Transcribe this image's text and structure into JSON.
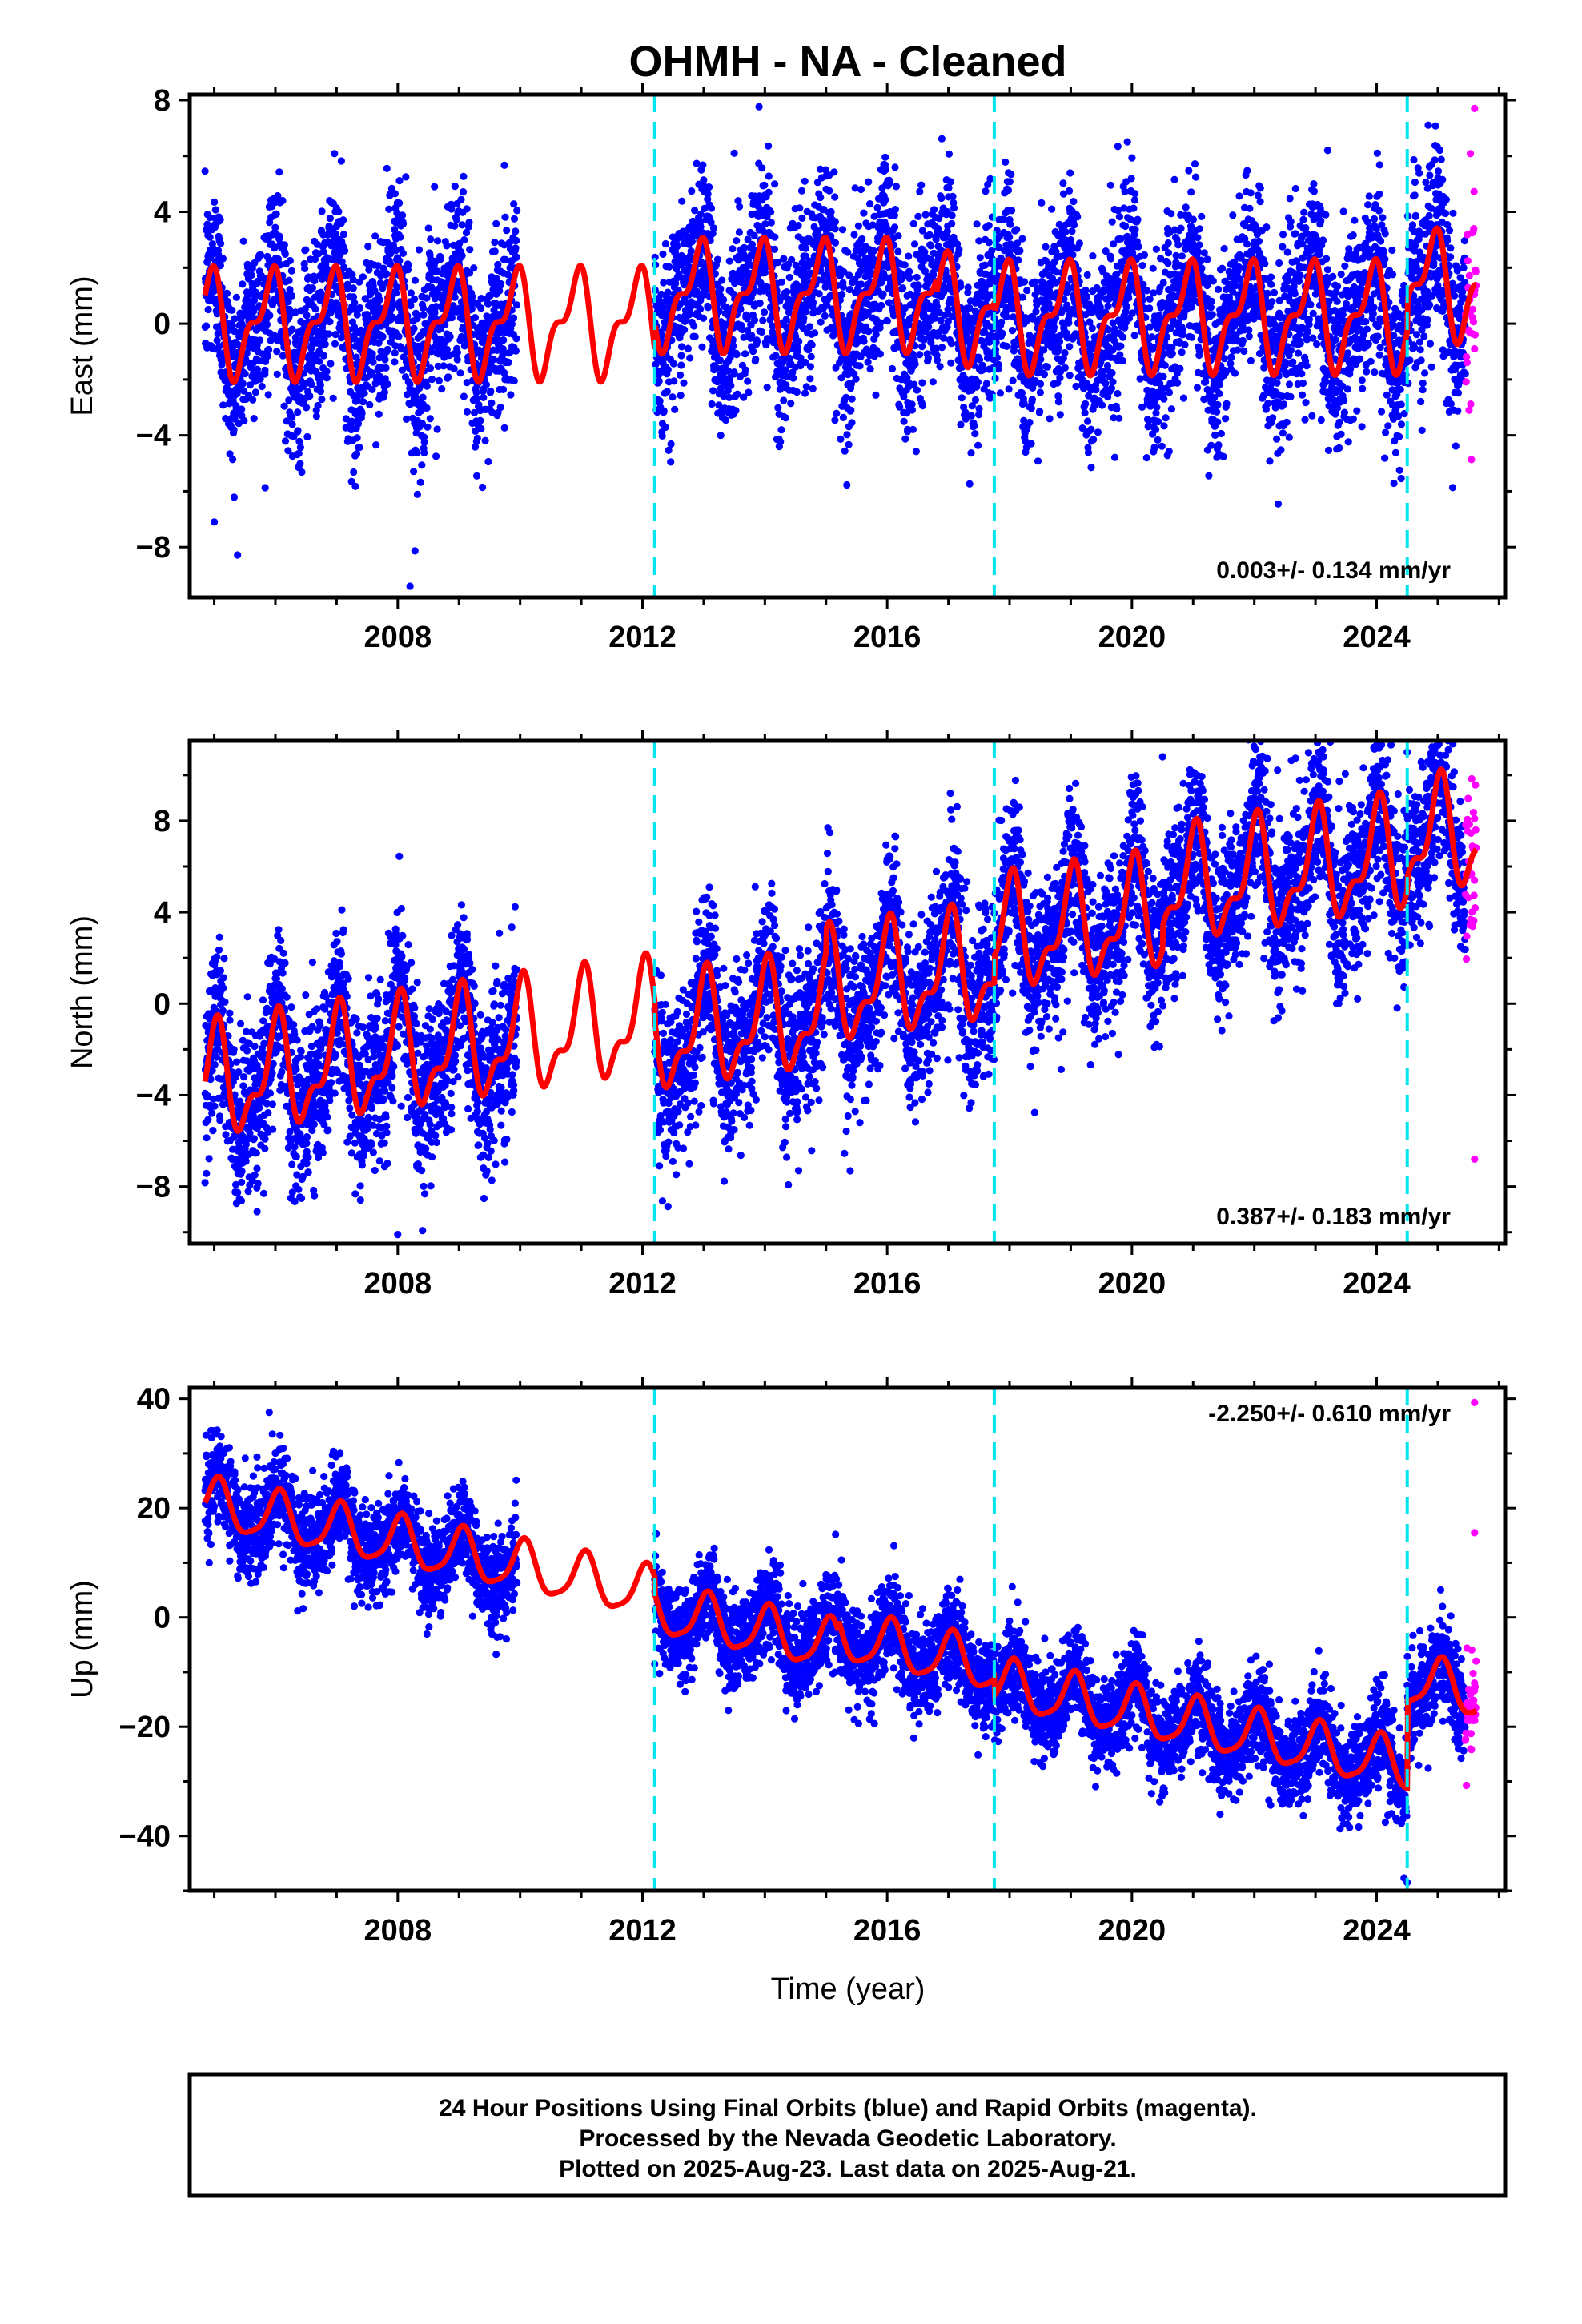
{
  "title": "OHMH  - NA - Cleaned",
  "xlabel": "Time (year)",
  "footer": {
    "line1": "24 Hour Positions Using Final Orbits (blue) and Rapid Orbits (magenta).",
    "line2": "Processed by the Nevada Geodetic Laboratory.",
    "line3": "Plotted on 2025-Aug-23. Last data on 2025-Aug-21."
  },
  "colors": {
    "final_orbits": "#0000ff",
    "rapid_orbits": "#ff00ff",
    "model": "#ff0000",
    "equipment_change": "#00e5ee"
  },
  "chart_data": [
    {
      "type": "scatter",
      "name": "east",
      "ylabel": "East (mm)",
      "rate_label": "0.003+/- 0.134 mm/yr",
      "rate_position": "bottom-right",
      "xlim": [
        2004.6,
        2026.1
      ],
      "ylim": [
        -9.8,
        8.2
      ],
      "xticks": [
        2008,
        2012,
        2016,
        2020,
        2024
      ],
      "yticks": [
        -8,
        -4,
        0,
        4,
        8
      ],
      "equipment_changes": [
        2012.2,
        2017.75,
        2024.5
      ],
      "model": {
        "trend": [
          0.0,
          0.003
        ],
        "annual": [
          1.6,
          2.2
        ],
        "semiannual": [
          0.8,
          1.2
        ],
        "offsets": [
          {
            "year": 2012.2,
            "delta": 1.0
          },
          {
            "year": 2016.8,
            "delta": -0.5
          },
          {
            "year": 2017.75,
            "delta": -0.3
          },
          {
            "year": 2024.5,
            "delta": 1.1
          }
        ]
      },
      "observations": {
        "final_spans": [
          [
            2004.85,
            2009.95
          ],
          [
            2012.2,
            2025.45
          ]
        ],
        "rapid_span": [
          2025.45,
          2025.63
        ],
        "scatter": 1.6,
        "outliers": [
          [
            2008.2,
            -9.4
          ],
          [
            2005.0,
            -7.1
          ],
          [
            2008.6,
            4.9
          ],
          [
            2013.5,
            6.1
          ],
          [
            2023.2,
            6.2
          ],
          [
            2025.6,
            7.7
          ],
          [
            2025.6,
            -0.9
          ]
        ]
      },
      "model_span": [
        2004.85,
        2025.63
      ]
    },
    {
      "type": "scatter",
      "name": "north",
      "ylabel": "North (mm)",
      "rate_label": "0.387+/- 0.183 mm/yr",
      "rate_position": "bottom-right",
      "xlim": [
        2004.6,
        2026.1
      ],
      "ylim": [
        -10.5,
        11.5
      ],
      "xticks": [
        2008,
        2012,
        2016,
        2020,
        2024
      ],
      "yticks": [
        -8,
        -4,
        0,
        4,
        8
      ],
      "equipment_changes": [
        2012.2,
        2017.75,
        2024.5
      ],
      "model": {
        "trend": [
          -3.5,
          0.387
        ],
        "annual": [
          2.1,
          1.5
        ],
        "semiannual": [
          1.0,
          0.6
        ],
        "offsets": [
          {
            "year": 2012.2,
            "delta": -0.8
          },
          {
            "year": 2015.0,
            "delta": 1.0
          },
          {
            "year": 2017.75,
            "delta": 1.2
          },
          {
            "year": 2020.5,
            "delta": 1.0
          },
          {
            "year": 2024.5,
            "delta": 0.6
          }
        ]
      },
      "observations": {
        "final_spans": [
          [
            2004.85,
            2009.95
          ],
          [
            2012.2,
            2025.45
          ]
        ],
        "rapid_span": [
          2025.45,
          2025.63
        ],
        "scatter": 1.8,
        "outliers": [
          [
            2008.0,
            -10.1
          ],
          [
            2005.7,
            -9.1
          ],
          [
            2020.5,
            10.8
          ],
          [
            2024.5,
            11.0
          ],
          [
            2025.6,
            -6.8
          ],
          [
            2025.6,
            8.1
          ]
        ]
      },
      "model_span": [
        2004.85,
        2025.63
      ]
    },
    {
      "type": "scatter",
      "name": "up",
      "ylabel": "Up (mm)",
      "rate_label": "-2.250+/- 0.610 mm/yr",
      "rate_position": "top-right",
      "xlim": [
        2004.6,
        2026.1
      ],
      "ylim": [
        -50,
        42
      ],
      "xticks": [
        2008,
        2012,
        2016,
        2020,
        2024
      ],
      "yticks": [
        -40,
        -20,
        0,
        20,
        40
      ],
      "equipment_changes": [
        2012.2,
        2017.75,
        2024.5
      ],
      "model": {
        "trend": [
          20.5,
          -2.25
        ],
        "annual": [
          4.5,
          1.2
        ],
        "semiannual": [
          1.0,
          0.4
        ],
        "offsets": [
          {
            "year": 2012.2,
            "delta": -3.0
          },
          {
            "year": 2015.2,
            "delta": 2.0
          },
          {
            "year": 2017.75,
            "delta": -3.0
          },
          {
            "year": 2024.5,
            "delta": 16.0
          }
        ]
      },
      "observations": {
        "final_spans": [
          [
            2004.85,
            2009.95
          ],
          [
            2012.2,
            2025.45
          ]
        ],
        "rapid_span": [
          2025.45,
          2025.63
        ],
        "scatter": 4.2,
        "outliers": [
          [
            2024.5,
            -48.5
          ],
          [
            2012.2,
            -8.5
          ],
          [
            2005.9,
            37.5
          ],
          [
            2025.6,
            39.3
          ],
          [
            2025.6,
            -12.0
          ],
          [
            2025.6,
            15.5
          ]
        ]
      },
      "model_span": [
        2004.85,
        2025.63
      ]
    }
  ]
}
